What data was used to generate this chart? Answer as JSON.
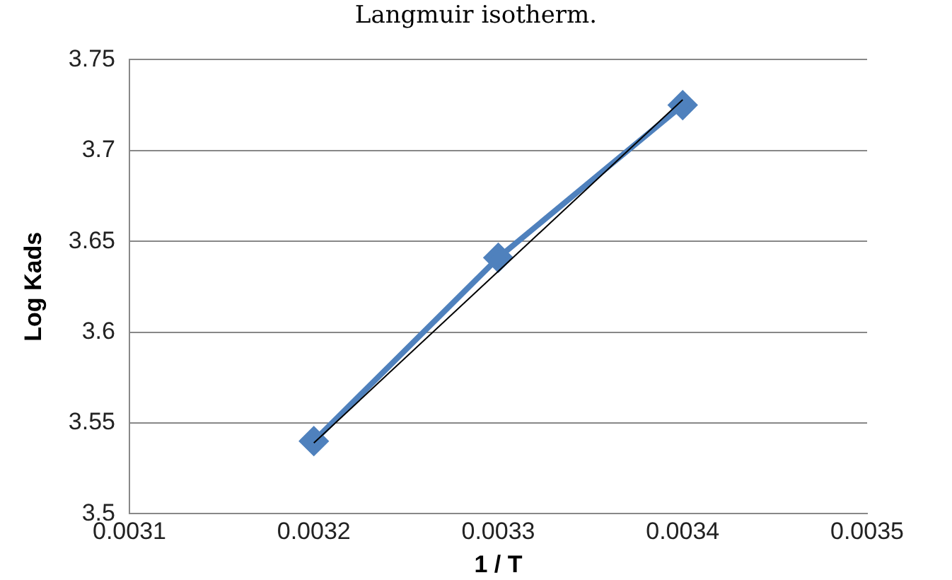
{
  "chart_data": {
    "type": "line",
    "title": "Langmuir isotherm.",
    "xlabel": "1 / T",
    "ylabel": "Log Kads",
    "x": [
      0.0032,
      0.0033,
      0.0034
    ],
    "series": [
      {
        "color": "#4f81bd",
        "values": [
          3.54,
          3.641,
          3.725
        ]
      },
      {
        "color": "#000000",
        "x": [
          0.0032,
          0.0034
        ],
        "values": [
          3.539,
          3.728
        ],
        "marker": "none"
      }
    ],
    "xlim": [
      0.0031,
      0.0035
    ],
    "xticks": [
      0.0031,
      0.0032,
      0.0033,
      0.0034,
      0.0035
    ],
    "ylim": [
      3.5,
      3.75
    ],
    "yticks": [
      3.5,
      3.55,
      3.6,
      3.65,
      3.7,
      3.75
    ],
    "grid": "y",
    "legend": false,
    "marker": "diamond"
  }
}
